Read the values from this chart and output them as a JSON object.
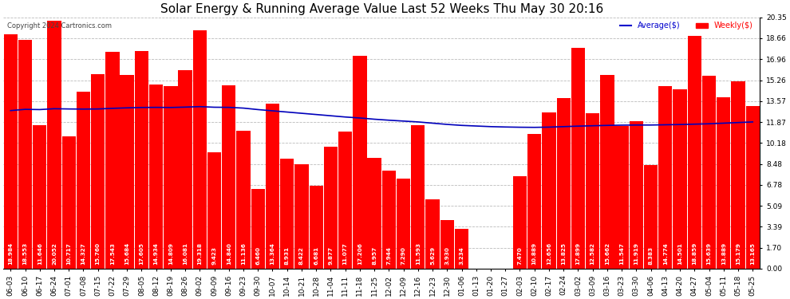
{
  "title": "Solar Energy & Running Average Value Last 52 Weeks Thu May 30 20:16",
  "copyright": "Copyright 2024 Cartronics.com",
  "categories": [
    "06-03",
    "06-10",
    "06-17",
    "06-24",
    "07-01",
    "07-08",
    "07-15",
    "07-22",
    "07-29",
    "08-05",
    "08-12",
    "08-19",
    "08-26",
    "09-02",
    "09-09",
    "09-16",
    "09-23",
    "09-30",
    "10-07",
    "10-14",
    "10-21",
    "10-28",
    "11-04",
    "11-11",
    "11-18",
    "11-25",
    "12-02",
    "12-09",
    "12-16",
    "12-23",
    "12-30",
    "01-06",
    "01-13",
    "01-20",
    "01-27",
    "02-03",
    "02-10",
    "02-17",
    "02-24",
    "03-02",
    "03-09",
    "03-16",
    "03-23",
    "03-30",
    "04-06",
    "04-13",
    "04-20",
    "04-27",
    "05-04",
    "05-11",
    "05-18",
    "05-25"
  ],
  "weekly_values": [
    18.984,
    18.553,
    11.646,
    20.052,
    10.717,
    14.327,
    15.76,
    17.543,
    15.684,
    17.605,
    14.934,
    14.809,
    16.081,
    19.318,
    9.423,
    14.84,
    11.136,
    6.46,
    13.364,
    8.931,
    8.422,
    6.681,
    9.877,
    11.077,
    17.206,
    8.957,
    7.944,
    7.29,
    11.593,
    5.629,
    3.93,
    3.234,
    0.0,
    0.0,
    0.013,
    7.47,
    10.889,
    12.656,
    13.825,
    17.899,
    12.582,
    15.662,
    11.547,
    11.919,
    8.383,
    14.774,
    14.501,
    18.859,
    15.639,
    13.889,
    15.179,
    13.165
  ],
  "avg_values": [
    12.8,
    12.9,
    12.88,
    12.95,
    12.93,
    12.92,
    12.93,
    12.98,
    13.02,
    13.05,
    13.06,
    13.05,
    13.08,
    13.12,
    13.07,
    13.06,
    13.0,
    12.88,
    12.78,
    12.68,
    12.58,
    12.48,
    12.38,
    12.28,
    12.2,
    12.1,
    12.02,
    11.95,
    11.88,
    11.78,
    11.68,
    11.6,
    11.55,
    11.5,
    11.47,
    11.45,
    11.44,
    11.46,
    11.5,
    11.54,
    11.57,
    11.6,
    11.62,
    11.63,
    11.63,
    11.65,
    11.67,
    11.7,
    11.73,
    11.78,
    11.83,
    11.88
  ],
  "bar_color": "#ff0000",
  "avg_line_color": "#0000bb",
  "background_color": "#ffffff",
  "grid_color": "#bbbbbb",
  "ylim": [
    0.0,
    20.35
  ],
  "yticks": [
    0.0,
    1.7,
    3.39,
    5.09,
    6.78,
    8.48,
    10.18,
    11.87,
    13.57,
    15.26,
    16.96,
    18.66,
    20.35
  ],
  "legend_avg_label": "Average($)",
  "legend_weekly_label": "Weekly($)",
  "legend_avg_color": "#0000cc",
  "legend_weekly_color": "#ff0000",
  "title_fontsize": 11,
  "tick_fontsize": 6.5,
  "value_fontsize": 5.2
}
